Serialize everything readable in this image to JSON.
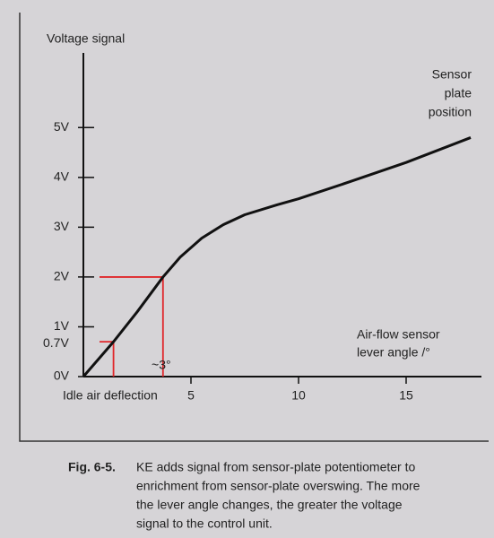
{
  "chart_data": {
    "type": "line",
    "y_label": "Voltage signal",
    "series_label": [
      "Sensor",
      "plate",
      "position"
    ],
    "x_label": [
      "Air-flow sensor",
      "lever angle /°"
    ],
    "x": [
      0,
      1.4,
      2.5,
      3.7,
      4.5,
      5.5,
      6.5,
      7.5,
      9,
      10,
      12.5,
      15,
      18
    ],
    "values": [
      0,
      0.7,
      1.3,
      2,
      2.4,
      2.78,
      3.05,
      3.25,
      3.45,
      3.57,
      3.93,
      4.3,
      4.8
    ],
    "color": "#111111",
    "xlim": [
      0,
      18.5
    ],
    "ylim": [
      0,
      6.5
    ],
    "xticks": [
      5,
      10,
      15
    ],
    "yticks": [
      {
        "value": 0,
        "label": "0V"
      },
      {
        "value": 1,
        "label": "1V"
      },
      {
        "value": 2,
        "label": "2V"
      },
      {
        "value": 3,
        "label": "3V"
      },
      {
        "value": 4,
        "label": "4V"
      },
      {
        "value": 5,
        "label": "5V"
      }
    ],
    "guides": [
      {
        "x": 1.4,
        "y": 0.7,
        "label": "0.7V"
      },
      {
        "x": 3.7,
        "y": 2,
        "label": "~3°"
      }
    ],
    "guide_color": "#e0262a",
    "annotation": "Idle air deflection",
    "caption": {
      "fig": "Fig. 6-5.",
      "lines": [
        "KE adds signal from sensor-plate potentiometer to",
        "enrichment from sensor-plate overswing. The more",
        "the lever angle changes, the greater the voltage",
        "signal to the control unit."
      ]
    }
  }
}
